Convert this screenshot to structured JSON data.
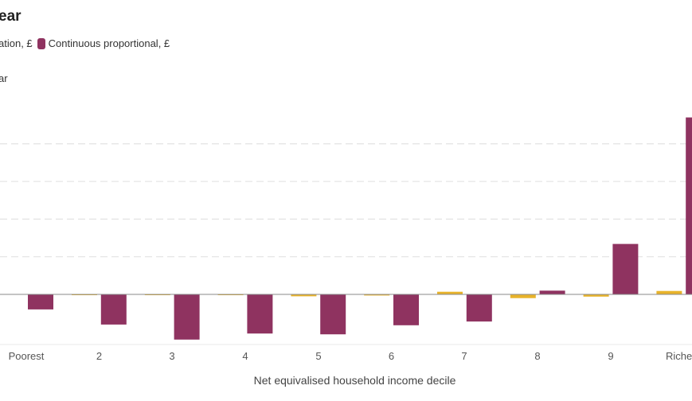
{
  "chart_data": {
    "type": "bar",
    "title": "ear",
    "legend": [
      {
        "name": "ation, £",
        "color": "#e8b32a"
      },
      {
        "name": "Continuous proportional, £",
        "color": "#8f3360"
      }
    ],
    "ylabel": "ar",
    "xlabel": "Net equivalised household income decile",
    "categories": [
      "Poorest",
      "2",
      "3",
      "4",
      "5",
      "6",
      "7",
      "8",
      "9",
      "Riche"
    ],
    "series": [
      {
        "name": "ation, £",
        "color": "#e8b32a",
        "values": [
          0,
          -0.5,
          -0.5,
          -2.5,
          -1.5,
          3.5,
          -5.0,
          -3.0,
          4.5,
          4.0
        ]
      },
      {
        "name": "Continuous proportional, £",
        "color": "#8f3360",
        "values": [
          -20,
          -40,
          -60,
          -52,
          -53,
          -41,
          -36,
          5,
          67,
          235
        ]
      }
    ],
    "ylim": [
      -63,
      250
    ],
    "grid": true,
    "legend_position": "top-left"
  }
}
